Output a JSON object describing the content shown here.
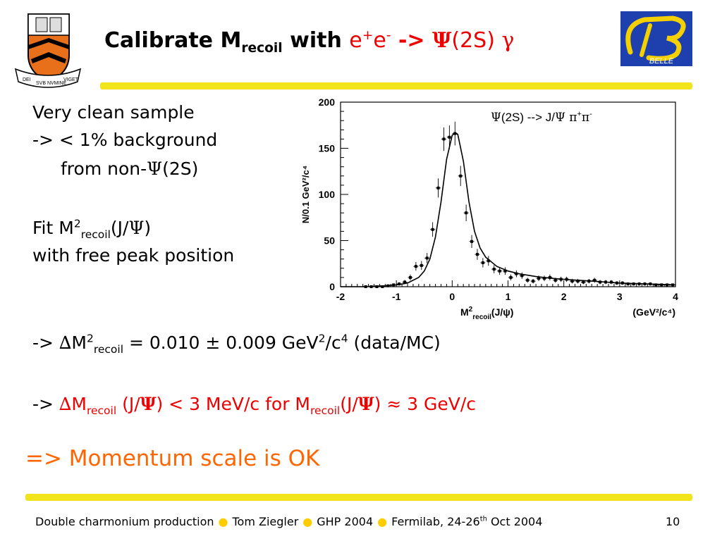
{
  "title": {
    "prefix": "Calibrate M",
    "sub": "recoil",
    "mid": " with ",
    "e": "e",
    "plus": "+",
    "e2": "e",
    "minus": "-",
    "arrow": " -> ",
    "psi": "Ψ",
    "state": "(2S)",
    "gamma": " γ"
  },
  "logos": {
    "left_motto_1": "DEI",
    "left_motto_2": "SVB NVMINE",
    "left_motto_3": "VIGET",
    "belle": "BELLE"
  },
  "left_text": {
    "line1": "Very clean sample",
    "line2": "-> < 1% background",
    "line3a": "from non-",
    "line3b": "Ψ",
    "line3c": "(2S)",
    "line4a": "Fit M",
    "line4sup": "2",
    "line4sub": "recoil",
    "line4b": "(J/",
    "line4psi": "Ψ",
    "line4c": ")",
    "line5": "with free peak position"
  },
  "result1": {
    "a": "-> ",
    "delta": "∆",
    "b": "M",
    "sup": "2",
    "sub": "recoil",
    "c": " = 0.010 ",
    "pm": "±",
    "d": " 0.009 GeV",
    "sup2": "2",
    "e": "/c",
    "sup3": "4",
    "f": " (data/MC)"
  },
  "result2": {
    "a": "-> ",
    "delta": "∆",
    "b": "M",
    "sub": "recoil",
    "c": " (J/",
    "psi": "Ψ",
    "d": ") < 3 MeV/c for M",
    "sub2": "recoil",
    "e": "(J/",
    "psi2": "Ψ",
    "f": ") ",
    "approx": "≈",
    "g": " 3 GeV/c"
  },
  "conclusion": "=> Momentum scale is OK",
  "footer": {
    "talk": "Double charmonium production",
    "author": "Tom Ziegler",
    "conf": "GHP 2004",
    "place_a": "Fermilab, 24-26",
    "place_sup": "th",
    "place_b": " Oct 2004",
    "page": "10"
  },
  "colors": {
    "red": "#ee0000",
    "orange": "#ff6600",
    "rule_yellow": "#f2e41a",
    "princeton_orange": "#e8701a",
    "belle_blue": "#1e3fae"
  },
  "chart_data": {
    "type": "scatter",
    "legend": {
      "psi": "Ψ",
      "a": "(2S) --> J/",
      "psi2": "Ψ",
      "pi": " π",
      "plus": "+",
      "pi2": "π",
      "minus": "-"
    },
    "ylabel": "N/0.1 GeV²/c⁴",
    "xlabel": {
      "a": "M",
      "sup": "2",
      "sub": "recoil",
      "b": "(J/ψ)",
      "units": "(GeV²/c⁴)"
    },
    "xlim": [
      -2,
      4
    ],
    "ylim": [
      0,
      200
    ],
    "xticks": [
      "-2",
      "-1",
      "0",
      "1",
      "2",
      "3",
      "4"
    ],
    "yticks": [
      "0",
      "50",
      "100",
      "150",
      "200"
    ],
    "series": [
      {
        "kind": "points",
        "x": [
          -1.55,
          -1.45,
          -1.35,
          -1.25,
          -1.15,
          -1.05,
          -0.95,
          -0.85,
          -0.75,
          -0.65,
          -0.55,
          -0.45,
          -0.35,
          -0.25,
          -0.15,
          -0.05,
          0.05,
          0.15,
          0.25,
          0.35,
          0.45,
          0.55,
          0.65,
          0.75,
          0.85,
          0.95,
          1.05,
          1.15,
          1.25,
          1.35,
          1.45,
          1.55,
          1.65,
          1.75,
          1.85,
          1.95,
          2.05,
          2.15,
          2.25,
          2.35,
          2.45,
          2.55,
          2.65,
          2.75,
          2.85,
          2.95,
          3.05,
          3.15,
          3.25,
          3.35,
          3.45,
          3.55,
          3.65,
          3.75,
          3.85,
          3.95
        ],
        "y": [
          0,
          0,
          0,
          0,
          1,
          2,
          3,
          5,
          10,
          22,
          23,
          31,
          62,
          107,
          160,
          162,
          166,
          120,
          80,
          49,
          35,
          26,
          28,
          19,
          17,
          17,
          10,
          14,
          12,
          7,
          6,
          9,
          9,
          10,
          7,
          8,
          8,
          6,
          6,
          5,
          6,
          7,
          5,
          5,
          5,
          4,
          4,
          3,
          3,
          3,
          3,
          3,
          2,
          2,
          2,
          2
        ]
      },
      {
        "kind": "fit",
        "x": [
          -2,
          -1.6,
          -1.2,
          -1.0,
          -0.8,
          -0.6,
          -0.5,
          -0.4,
          -0.3,
          -0.2,
          -0.1,
          0.0,
          0.05,
          0.1,
          0.2,
          0.3,
          0.4,
          0.5,
          0.6,
          0.8,
          1.0,
          1.2,
          1.5,
          1.8,
          2.0,
          2.5,
          3.0,
          3.5,
          4.0
        ],
        "y": [
          0,
          0,
          1,
          2,
          4,
          10,
          17,
          30,
          54,
          92,
          138,
          164,
          167,
          165,
          136,
          92,
          60,
          42,
          32,
          22,
          17,
          14,
          11,
          9,
          8,
          6,
          4,
          3,
          2
        ]
      }
    ]
  }
}
